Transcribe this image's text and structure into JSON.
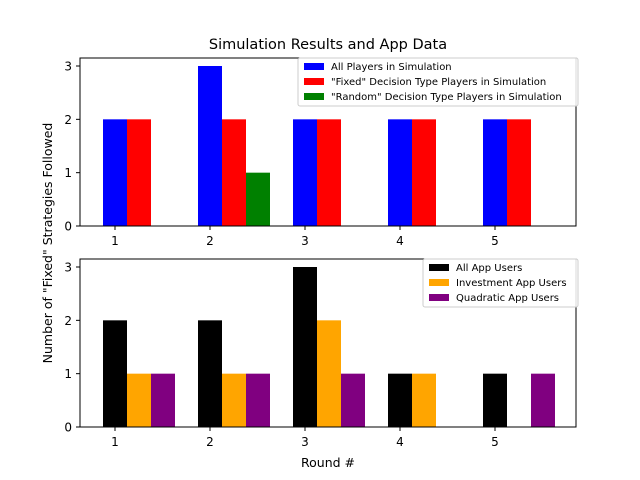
{
  "chart_data": {
    "type": "bar",
    "title": "Simulation Results and App Data",
    "ylabel": "Number of \"Fixed\" Strategies Followed",
    "xlabel": "Round #",
    "categories": [
      "1",
      "2",
      "3",
      "4",
      "5"
    ],
    "panels": [
      {
        "ylim": [
          0,
          3.15
        ],
        "yticks": [
          "0",
          "1",
          "2",
          "3"
        ],
        "legend": "top-right",
        "series": [
          {
            "name": "All Players in Simulation",
            "color": "#0000ff",
            "values": [
              2,
              3,
              2,
              2,
              2
            ]
          },
          {
            "name": "\"Fixed\" Decision Type Players in Simulation",
            "color": "#ff0000",
            "values": [
              2,
              2,
              2,
              2,
              2
            ]
          },
          {
            "name": "\"Random\" Decision Type Players in Simulation",
            "color": "#008000",
            "values": [
              0,
              1,
              0,
              0,
              0
            ]
          }
        ]
      },
      {
        "ylim": [
          0,
          3.15
        ],
        "yticks": [
          "0",
          "1",
          "2",
          "3"
        ],
        "legend": "top-right",
        "series": [
          {
            "name": "All App Users",
            "color": "#000000",
            "values": [
              2,
              2,
              3,
              1,
              1
            ]
          },
          {
            "name": "Investment App Users",
            "color": "#ffa500",
            "values": [
              1,
              1,
              2,
              1,
              0
            ]
          },
          {
            "name": "Quadratic App Users",
            "color": "#800080",
            "values": [
              1,
              1,
              1,
              0,
              1
            ]
          }
        ]
      }
    ]
  }
}
